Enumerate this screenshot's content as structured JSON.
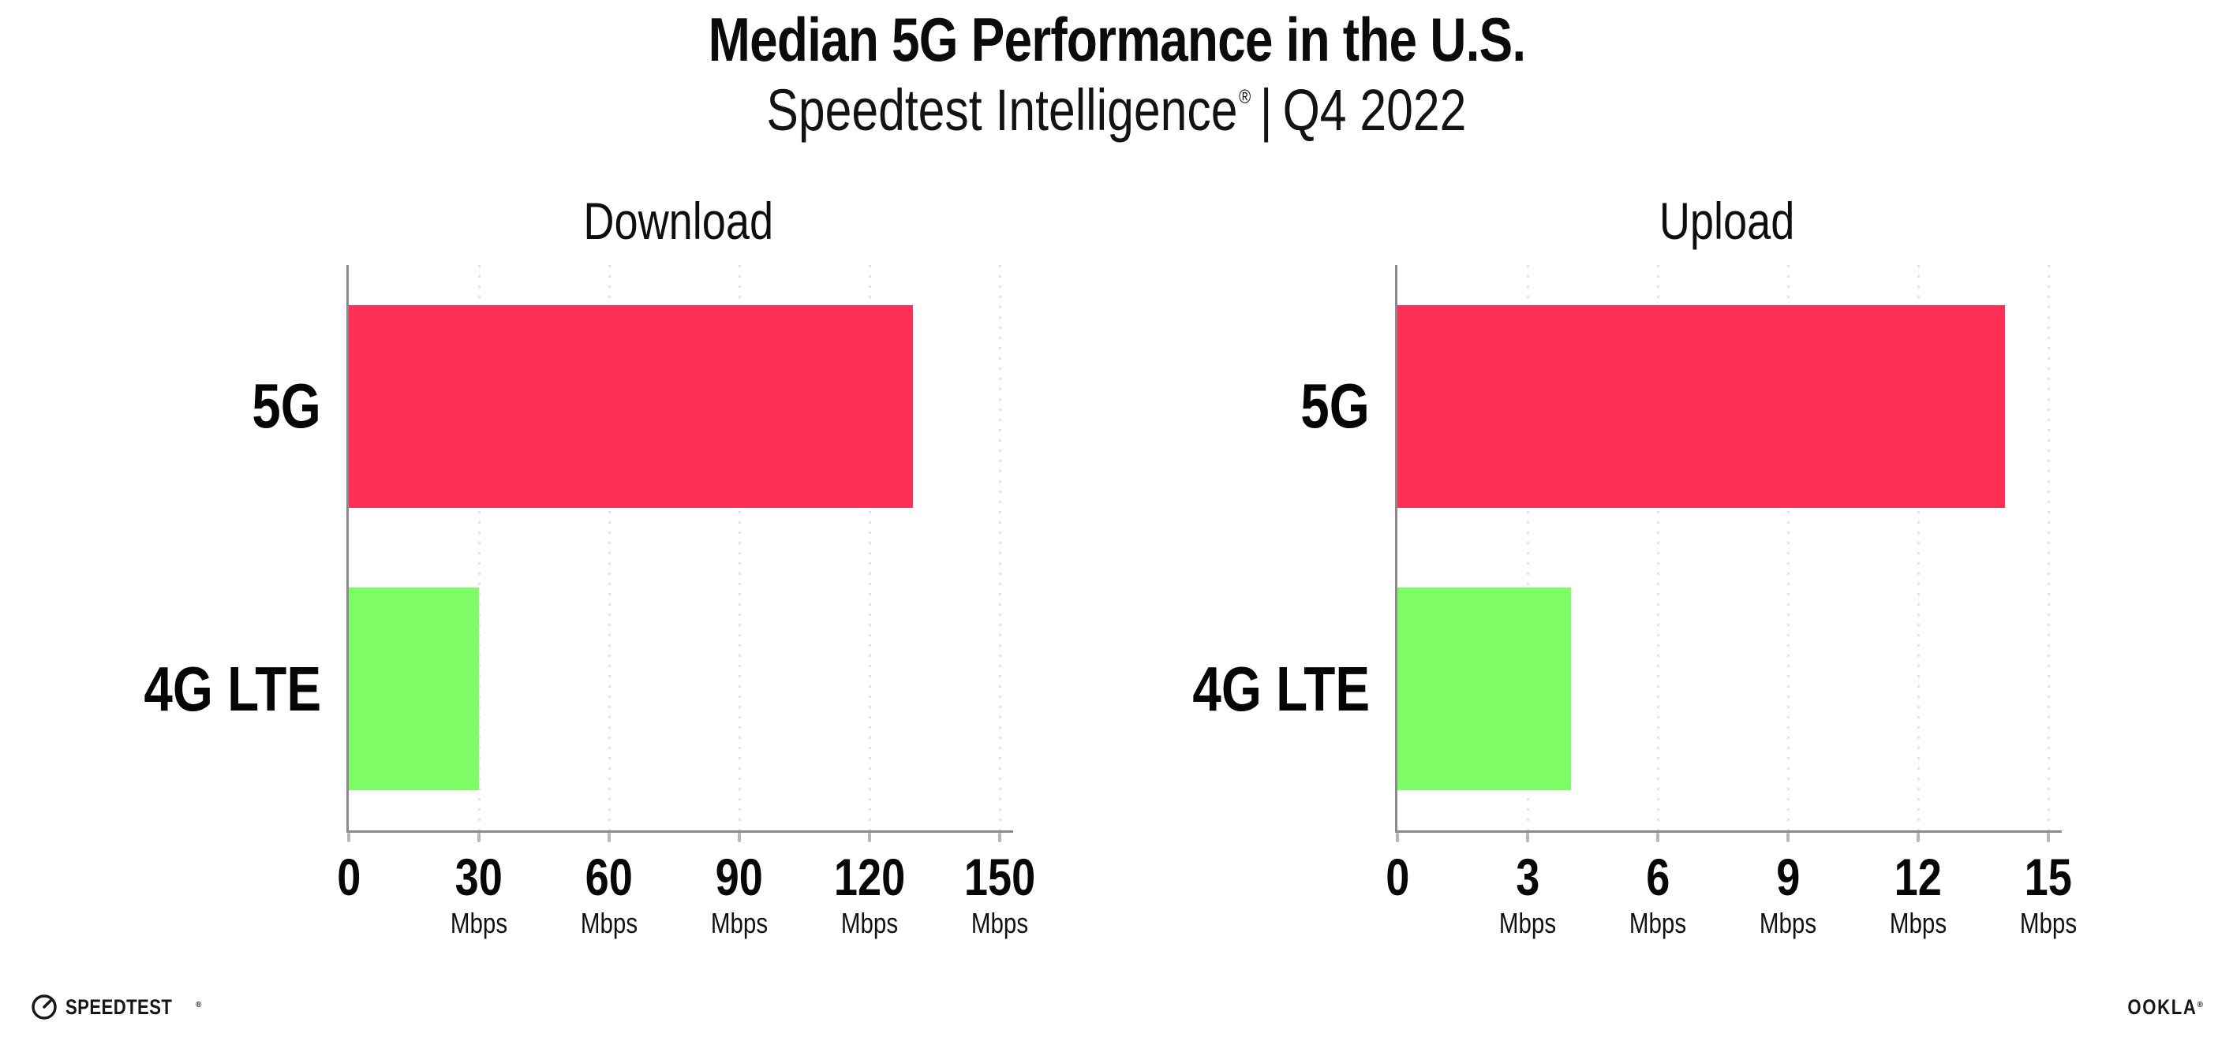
{
  "header": {
    "title": "Median 5G Performance in the U.S.",
    "subtitle_brand": "Speedtest Intelligence",
    "subtitle_reg": "®",
    "subtitle_sep": "|",
    "subtitle_period": "Q4 2022"
  },
  "chart_data": [
    {
      "type": "bar",
      "orientation": "horizontal",
      "title": "Download",
      "categories": [
        "5G",
        "4G LTE"
      ],
      "values": [
        130,
        30
      ],
      "unit": "Mbps",
      "ticks": [
        0,
        30,
        60,
        90,
        120,
        150
      ],
      "xlim": [
        0,
        153
      ],
      "xlabel": "Mbps",
      "ylabel": "",
      "grid": "dotted-vertical",
      "legend": "none"
    },
    {
      "type": "bar",
      "orientation": "horizontal",
      "title": "Upload",
      "categories": [
        "5G",
        "4G LTE"
      ],
      "values": [
        14,
        4
      ],
      "unit": "Mbps",
      "ticks": [
        0,
        3,
        6,
        9,
        12,
        15
      ],
      "xlim": [
        0,
        15.3
      ],
      "xlabel": "Mbps",
      "ylabel": "",
      "grid": "dotted-vertical",
      "legend": "none"
    }
  ],
  "colors": {
    "bar_colors": [
      "#FF3056",
      "#7EFC66"
    ],
    "axis": "#8a8a8a",
    "grid_dot": "#e1e1ea",
    "text": "#0c0c0c"
  },
  "footer": {
    "speedtest_label": "SPEEDTEST",
    "speedtest_reg": "®",
    "ookla_label": "OOKLA",
    "ookla_reg": "®"
  }
}
